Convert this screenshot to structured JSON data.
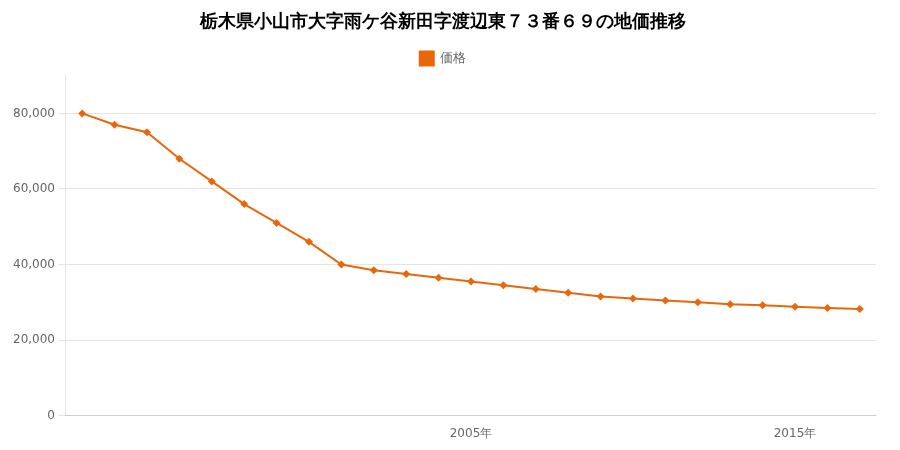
{
  "chart_data": {
    "type": "line",
    "title": "栃木県小山市大字雨ケ谷新田字渡辺東７３番６９の地価推移",
    "x": [
      1993,
      1994,
      1995,
      1996,
      1997,
      1998,
      1999,
      2000,
      2001,
      2002,
      2003,
      2004,
      2005,
      2006,
      2007,
      2008,
      2009,
      2010,
      2011,
      2012,
      2013,
      2014,
      2015,
      2016,
      2017
    ],
    "series": [
      {
        "name": "価格",
        "color": "#e8670a",
        "marker": "diamond",
        "values": [
          80000,
          77000,
          75000,
          68000,
          62000,
          56000,
          51000,
          46000,
          40000,
          38500,
          37500,
          36500,
          35500,
          34500,
          33500,
          32500,
          31500,
          31000,
          30500,
          30000,
          29500,
          29200,
          28800,
          28500,
          28200
        ]
      }
    ],
    "xlim": [
      1992.5,
      2017.5
    ],
    "xticks": [
      {
        "value": 2005,
        "label": "2005年"
      },
      {
        "value": 2015,
        "label": "2015年"
      }
    ],
    "ylim": [
      0,
      90000
    ],
    "yticks": [
      0,
      {
        "value": 20000,
        "label": "20,000"
      },
      {
        "value": 40000,
        "label": "40,000"
      },
      {
        "value": 60000,
        "label": "60,000"
      },
      {
        "value": 80000,
        "label": "80,000"
      }
    ],
    "grid": "y",
    "legend": "top"
  }
}
